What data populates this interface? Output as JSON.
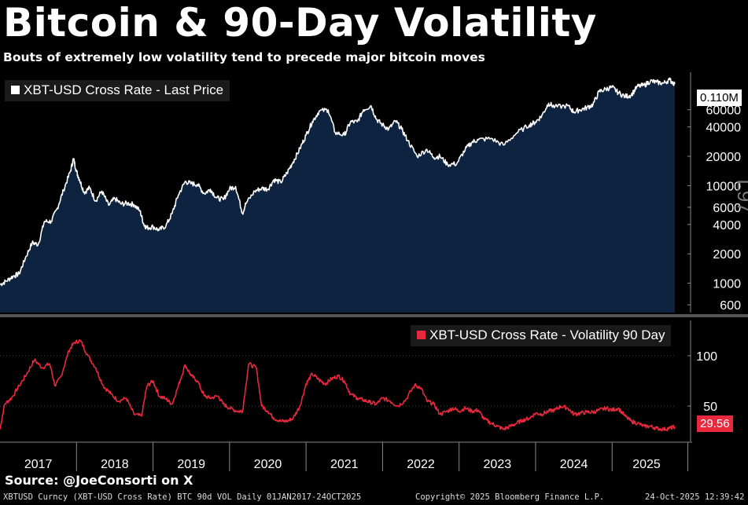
{
  "header": {
    "title": "Bitcoin & 90-Day Volatility",
    "subtitle": "Bouts of extremely low volatility tend to precede major bitcoin moves"
  },
  "footer": {
    "source": "Source: @JoeConsorti on X",
    "ticker_line": "XBTUSD Curncy (XBT-USD Cross Rate) BTC 90d VOL Daily 01JAN2017-24OCT2025",
    "copyright": "Copyright© 2025 Bloomberg Finance L.P.",
    "timestamp": "24-Oct-2025 12:39:42"
  },
  "colors": {
    "background": "#000000",
    "price_line": "#ffffff",
    "price_fill": "#0e2340",
    "vol_line": "#e8283c",
    "divider": "#555555"
  },
  "price_panel_label": "L97",
  "chart_data": [
    {
      "type": "area",
      "legend": "XBT-USD Cross Rate - Last Price",
      "legend_placement": "top-left",
      "y_scale": "log",
      "last_value_label": "0.110M",
      "yticks": [
        600,
        1000,
        2000,
        4000,
        6000,
        10000,
        20000,
        40000,
        60000
      ],
      "ytick_labels": [
        "600",
        "1000",
        "2000",
        "4000",
        "6000",
        "10000",
        "20000",
        "40000",
        "60000"
      ],
      "ylim": [
        500,
        130000
      ],
      "xlim": [
        2017.0,
        2025.82
      ],
      "series": [
        {
          "points": [
            [
              2017.0,
              970
            ],
            [
              2017.08,
              1050
            ],
            [
              2017.17,
              1180
            ],
            [
              2017.25,
              1250
            ],
            [
              2017.33,
              1800
            ],
            [
              2017.42,
              2600
            ],
            [
              2017.5,
              2500
            ],
            [
              2017.58,
              4300
            ],
            [
              2017.67,
              4300
            ],
            [
              2017.75,
              5900
            ],
            [
              2017.83,
              9000
            ],
            [
              2017.92,
              14000
            ],
            [
              2017.96,
              19000
            ],
            [
              2018.0,
              14000
            ],
            [
              2018.04,
              11500
            ],
            [
              2018.1,
              8500
            ],
            [
              2018.17,
              9500
            ],
            [
              2018.25,
              7000
            ],
            [
              2018.33,
              8800
            ],
            [
              2018.42,
              6300
            ],
            [
              2018.5,
              7400
            ],
            [
              2018.58,
              6500
            ],
            [
              2018.67,
              6600
            ],
            [
              2018.75,
              6400
            ],
            [
              2018.83,
              5500
            ],
            [
              2018.88,
              4000
            ],
            [
              2018.92,
              3700
            ],
            [
              2019.0,
              3800
            ],
            [
              2019.08,
              3500
            ],
            [
              2019.17,
              3900
            ],
            [
              2019.25,
              5200
            ],
            [
              2019.33,
              8000
            ],
            [
              2019.42,
              11000
            ],
            [
              2019.5,
              10500
            ],
            [
              2019.58,
              10300
            ],
            [
              2019.67,
              8300
            ],
            [
              2019.75,
              9200
            ],
            [
              2019.83,
              7500
            ],
            [
              2019.92,
              7200
            ],
            [
              2020.0,
              9300
            ],
            [
              2020.08,
              9800
            ],
            [
              2020.17,
              5200
            ],
            [
              2020.21,
              6500
            ],
            [
              2020.33,
              8800
            ],
            [
              2020.42,
              9400
            ],
            [
              2020.5,
              9200
            ],
            [
              2020.58,
              11500
            ],
            [
              2020.67,
              10800
            ],
            [
              2020.75,
              13500
            ],
            [
              2020.83,
              17500
            ],
            [
              2020.92,
              24000
            ],
            [
              2021.0,
              33000
            ],
            [
              2021.08,
              45000
            ],
            [
              2021.17,
              58000
            ],
            [
              2021.29,
              60000
            ],
            [
              2021.38,
              35000
            ],
            [
              2021.5,
              33000
            ],
            [
              2021.58,
              45000
            ],
            [
              2021.67,
              45000
            ],
            [
              2021.75,
              60000
            ],
            [
              2021.85,
              66000
            ],
            [
              2021.92,
              48000
            ],
            [
              2022.0,
              42000
            ],
            [
              2022.08,
              38000
            ],
            [
              2022.17,
              46000
            ],
            [
              2022.25,
              38000
            ],
            [
              2022.33,
              29000
            ],
            [
              2022.45,
              20000
            ],
            [
              2022.58,
              23500
            ],
            [
              2022.67,
              19500
            ],
            [
              2022.75,
              20000
            ],
            [
              2022.85,
              16500
            ],
            [
              2022.97,
              16800
            ],
            [
              2023.08,
              23500
            ],
            [
              2023.17,
              28000
            ],
            [
              2023.25,
              29500
            ],
            [
              2023.42,
              30500
            ],
            [
              2023.58,
              26000
            ],
            [
              2023.75,
              34500
            ],
            [
              2023.92,
              42000
            ],
            [
              2024.0,
              45000
            ],
            [
              2024.08,
              52000
            ],
            [
              2024.17,
              70000
            ],
            [
              2024.25,
              64000
            ],
            [
              2024.42,
              66000
            ],
            [
              2024.5,
              57000
            ],
            [
              2024.58,
              60000
            ],
            [
              2024.67,
              63000
            ],
            [
              2024.75,
              68000
            ],
            [
              2024.83,
              92000
            ],
            [
              2024.92,
              98000
            ],
            [
              2025.0,
              102000
            ],
            [
              2025.08,
              90000
            ],
            [
              2025.17,
              82000
            ],
            [
              2025.25,
              85000
            ],
            [
              2025.33,
              104000
            ],
            [
              2025.42,
              107000
            ],
            [
              2025.5,
              118000
            ],
            [
              2025.58,
              115000
            ],
            [
              2025.67,
              112000
            ],
            [
              2025.75,
              122000
            ],
            [
              2025.82,
              110000
            ]
          ]
        }
      ]
    },
    {
      "type": "line",
      "legend": "XBT-USD Cross Rate - Volatility 90 Day",
      "legend_placement": "top-right",
      "last_value_label": "29.56",
      "yticks": [
        50,
        100
      ],
      "ytick_labels": [
        "50",
        "100"
      ],
      "ylim": [
        15,
        135
      ],
      "xlim": [
        2017.0,
        2025.82
      ],
      "x_categories": [
        "2017",
        "2018",
        "2019",
        "2020",
        "2021",
        "2022",
        "2023",
        "2024",
        "2025"
      ],
      "series": [
        {
          "points": [
            [
              2017.0,
              27
            ],
            [
              2017.06,
              52
            ],
            [
              2017.15,
              58
            ],
            [
              2017.25,
              70
            ],
            [
              2017.35,
              82
            ],
            [
              2017.45,
              96
            ],
            [
              2017.55,
              88
            ],
            [
              2017.65,
              92
            ],
            [
              2017.72,
              70
            ],
            [
              2017.8,
              80
            ],
            [
              2017.9,
              105
            ],
            [
              2017.97,
              113
            ],
            [
              2018.05,
              115
            ],
            [
              2018.15,
              100
            ],
            [
              2018.25,
              88
            ],
            [
              2018.35,
              70
            ],
            [
              2018.45,
              62
            ],
            [
              2018.55,
              55
            ],
            [
              2018.65,
              58
            ],
            [
              2018.75,
              42
            ],
            [
              2018.85,
              40
            ],
            [
              2018.92,
              70
            ],
            [
              2019.0,
              75
            ],
            [
              2019.08,
              60
            ],
            [
              2019.17,
              57
            ],
            [
              2019.25,
              52
            ],
            [
              2019.33,
              70
            ],
            [
              2019.42,
              91
            ],
            [
              2019.5,
              80
            ],
            [
              2019.58,
              75
            ],
            [
              2019.67,
              60
            ],
            [
              2019.75,
              58
            ],
            [
              2019.85,
              60
            ],
            [
              2019.92,
              52
            ],
            [
              2020.0,
              48
            ],
            [
              2020.1,
              45
            ],
            [
              2020.17,
              45
            ],
            [
              2020.25,
              92
            ],
            [
              2020.35,
              88
            ],
            [
              2020.42,
              50
            ],
            [
              2020.5,
              45
            ],
            [
              2020.58,
              38
            ],
            [
              2020.67,
              35
            ],
            [
              2020.75,
              35
            ],
            [
              2020.83,
              38
            ],
            [
              2020.92,
              50
            ],
            [
              2021.0,
              72
            ],
            [
              2021.08,
              82
            ],
            [
              2021.17,
              76
            ],
            [
              2021.25,
              72
            ],
            [
              2021.33,
              77
            ],
            [
              2021.42,
              80
            ],
            [
              2021.5,
              75
            ],
            [
              2021.58,
              62
            ],
            [
              2021.67,
              58
            ],
            [
              2021.75,
              56
            ],
            [
              2021.83,
              54
            ],
            [
              2021.92,
              52
            ],
            [
              2022.0,
              58
            ],
            [
              2022.1,
              55
            ],
            [
              2022.2,
              50
            ],
            [
              2022.3,
              56
            ],
            [
              2022.42,
              71
            ],
            [
              2022.5,
              68
            ],
            [
              2022.58,
              55
            ],
            [
              2022.67,
              52
            ],
            [
              2022.75,
              42
            ],
            [
              2022.85,
              45
            ],
            [
              2022.92,
              48
            ],
            [
              2023.0,
              45
            ],
            [
              2023.08,
              48
            ],
            [
              2023.17,
              45
            ],
            [
              2023.25,
              46
            ],
            [
              2023.33,
              37
            ],
            [
              2023.42,
              33
            ],
            [
              2023.5,
              30
            ],
            [
              2023.58,
              27
            ],
            [
              2023.67,
              30
            ],
            [
              2023.75,
              33
            ],
            [
              2023.83,
              36
            ],
            [
              2023.92,
              38
            ],
            [
              2024.0,
              43
            ],
            [
              2024.08,
              42
            ],
            [
              2024.17,
              45
            ],
            [
              2024.25,
              46
            ],
            [
              2024.33,
              50
            ],
            [
              2024.42,
              48
            ],
            [
              2024.5,
              42
            ],
            [
              2024.58,
              43
            ],
            [
              2024.67,
              44
            ],
            [
              2024.75,
              44
            ],
            [
              2024.83,
              46
            ],
            [
              2024.92,
              48
            ],
            [
              2025.0,
              46
            ],
            [
              2025.08,
              48
            ],
            [
              2025.17,
              40
            ],
            [
              2025.25,
              35
            ],
            [
              2025.33,
              33
            ],
            [
              2025.42,
              30
            ],
            [
              2025.5,
              30
            ],
            [
              2025.58,
              28
            ],
            [
              2025.67,
              27
            ],
            [
              2025.75,
              28
            ],
            [
              2025.82,
              29.56
            ]
          ]
        }
      ]
    }
  ]
}
